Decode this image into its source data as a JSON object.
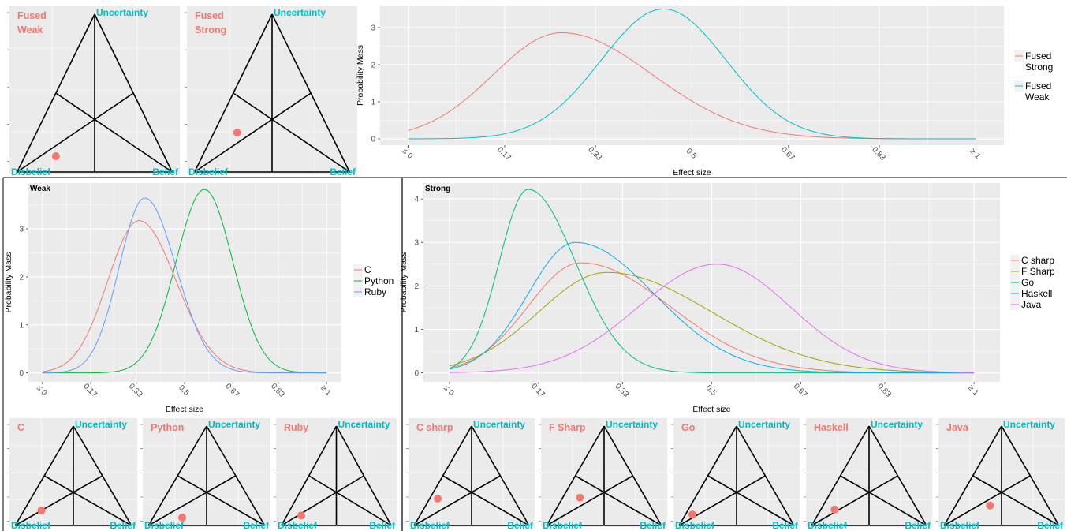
{
  "colors": {
    "panel_bg": "#ebebeb",
    "grid": "#ffffff",
    "red": "#f8766d",
    "teal": "#00bfc4",
    "c_sharp": "#f8766d",
    "f_sharp": "#a3a500",
    "go": "#00bf7d",
    "haskell": "#00b0f6",
    "java": "#e76bf3",
    "c": "#f8766d",
    "python": "#00ba38",
    "ruby": "#619cff"
  },
  "triangle_labels": {
    "top": "Uncertainty",
    "left": "Disbelief",
    "right": "Belief"
  },
  "opinions": {
    "top": [
      {
        "label": "Fused\nWeak",
        "belief": 0.2,
        "disbelief": 0.7,
        "uncertainty": 0.1
      },
      {
        "label": "Fused\nStrong",
        "belief": 0.15,
        "disbelief": 0.6,
        "uncertainty": 0.25
      }
    ],
    "weak": [
      {
        "label": "C",
        "belief": 0.15,
        "disbelief": 0.7,
        "uncertainty": 0.15
      },
      {
        "label": "Python",
        "belief": 0.25,
        "disbelief": 0.67,
        "uncertainty": 0.08
      },
      {
        "label": "Ruby",
        "belief": 0.13,
        "disbelief": 0.77,
        "uncertainty": 0.1
      }
    ],
    "strong": [
      {
        "label": "C sharp",
        "belief": 0.07,
        "disbelief": 0.66,
        "uncertainty": 0.27
      },
      {
        "label": "F Sharp",
        "belief": 0.15,
        "disbelief": 0.57,
        "uncertainty": 0.28
      },
      {
        "label": "Go",
        "belief": 0.06,
        "disbelief": 0.83,
        "uncertainty": 0.11
      },
      {
        "label": "Haskell",
        "belief": 0.12,
        "disbelief": 0.72,
        "uncertainty": 0.16
      },
      {
        "label": "Java",
        "belief": 0.3,
        "disbelief": 0.5,
        "uncertainty": 0.2
      }
    ]
  },
  "chart_data": [
    {
      "type": "line",
      "title": "",
      "xlabel": "Effect size",
      "ylabel": "Probability Mass",
      "x_ticks": [
        "≤ 0",
        "0.17",
        "0.33",
        "0.5",
        "0.67",
        "0.83",
        "≥ 1"
      ],
      "x_tick_values": [
        0,
        0.17,
        0.33,
        0.5,
        0.67,
        0.83,
        1
      ],
      "y_ticks": [
        0,
        1,
        2,
        3
      ],
      "xlim": [
        0,
        1
      ],
      "ylim": [
        0,
        3.5
      ],
      "legend": "right",
      "series": [
        {
          "name": "Fused\nStrong",
          "color_key": "red",
          "mode": 0.27,
          "peak": 2.86,
          "sd_left": 0.12,
          "sd_right": 0.16
        },
        {
          "name": "Fused\nWeak",
          "color_key": "teal",
          "mode": 0.45,
          "peak": 3.5,
          "sd_left": 0.11,
          "sd_right": 0.11
        }
      ]
    },
    {
      "type": "line",
      "title": "Weak",
      "xlabel": "Effect size",
      "ylabel": "Probability Mass",
      "x_ticks": [
        "≤ 0",
        "0.17",
        "0.33",
        "0.5",
        "0.67",
        "0.83",
        "≥ 1"
      ],
      "x_tick_values": [
        0,
        0.17,
        0.33,
        0.5,
        0.67,
        0.83,
        1
      ],
      "y_ticks": [
        0,
        1,
        2,
        3
      ],
      "xlim": [
        0,
        1
      ],
      "ylim": [
        0,
        3.85
      ],
      "legend": "right",
      "series": [
        {
          "name": "C",
          "color_key": "c",
          "mode": 0.34,
          "peak": 3.17,
          "sd_left": 0.11,
          "sd_right": 0.13
        },
        {
          "name": "Python",
          "color_key": "python",
          "mode": 0.57,
          "peak": 3.82,
          "sd_left": 0.1,
          "sd_right": 0.1
        },
        {
          "name": "Ruby",
          "color_key": "ruby",
          "mode": 0.36,
          "peak": 3.64,
          "sd_left": 0.09,
          "sd_right": 0.11
        }
      ]
    },
    {
      "type": "line",
      "title": "Strong",
      "xlabel": "Effect size",
      "ylabel": "Probability Mass",
      "x_ticks": [
        "≤ 0",
        "0.17",
        "0.33",
        "0.5",
        "0.67",
        "0.83",
        "≥ 1"
      ],
      "x_tick_values": [
        0,
        0.17,
        0.33,
        0.5,
        0.67,
        0.83,
        1
      ],
      "y_ticks": [
        0,
        1,
        2,
        3,
        4
      ],
      "xlim": [
        0,
        1
      ],
      "ylim": [
        0,
        4.25
      ],
      "legend": "right",
      "series": [
        {
          "name": "C sharp",
          "color_key": "c_sharp",
          "mode": 0.25,
          "peak": 2.53,
          "sd_left": 0.1,
          "sd_right": 0.17
        },
        {
          "name": "F Sharp",
          "color_key": "f_sharp",
          "mode": 0.3,
          "peak": 2.31,
          "sd_left": 0.13,
          "sd_right": 0.2
        },
        {
          "name": "Go",
          "color_key": "go",
          "mode": 0.15,
          "peak": 4.22,
          "sd_left": 0.055,
          "sd_right": 0.09
        },
        {
          "name": "Haskell",
          "color_key": "haskell",
          "mode": 0.24,
          "peak": 3.0,
          "sd_left": 0.09,
          "sd_right": 0.15
        },
        {
          "name": "Java",
          "color_key": "java",
          "mode": 0.51,
          "peak": 2.5,
          "sd_left": 0.15,
          "sd_right": 0.14
        }
      ]
    }
  ]
}
